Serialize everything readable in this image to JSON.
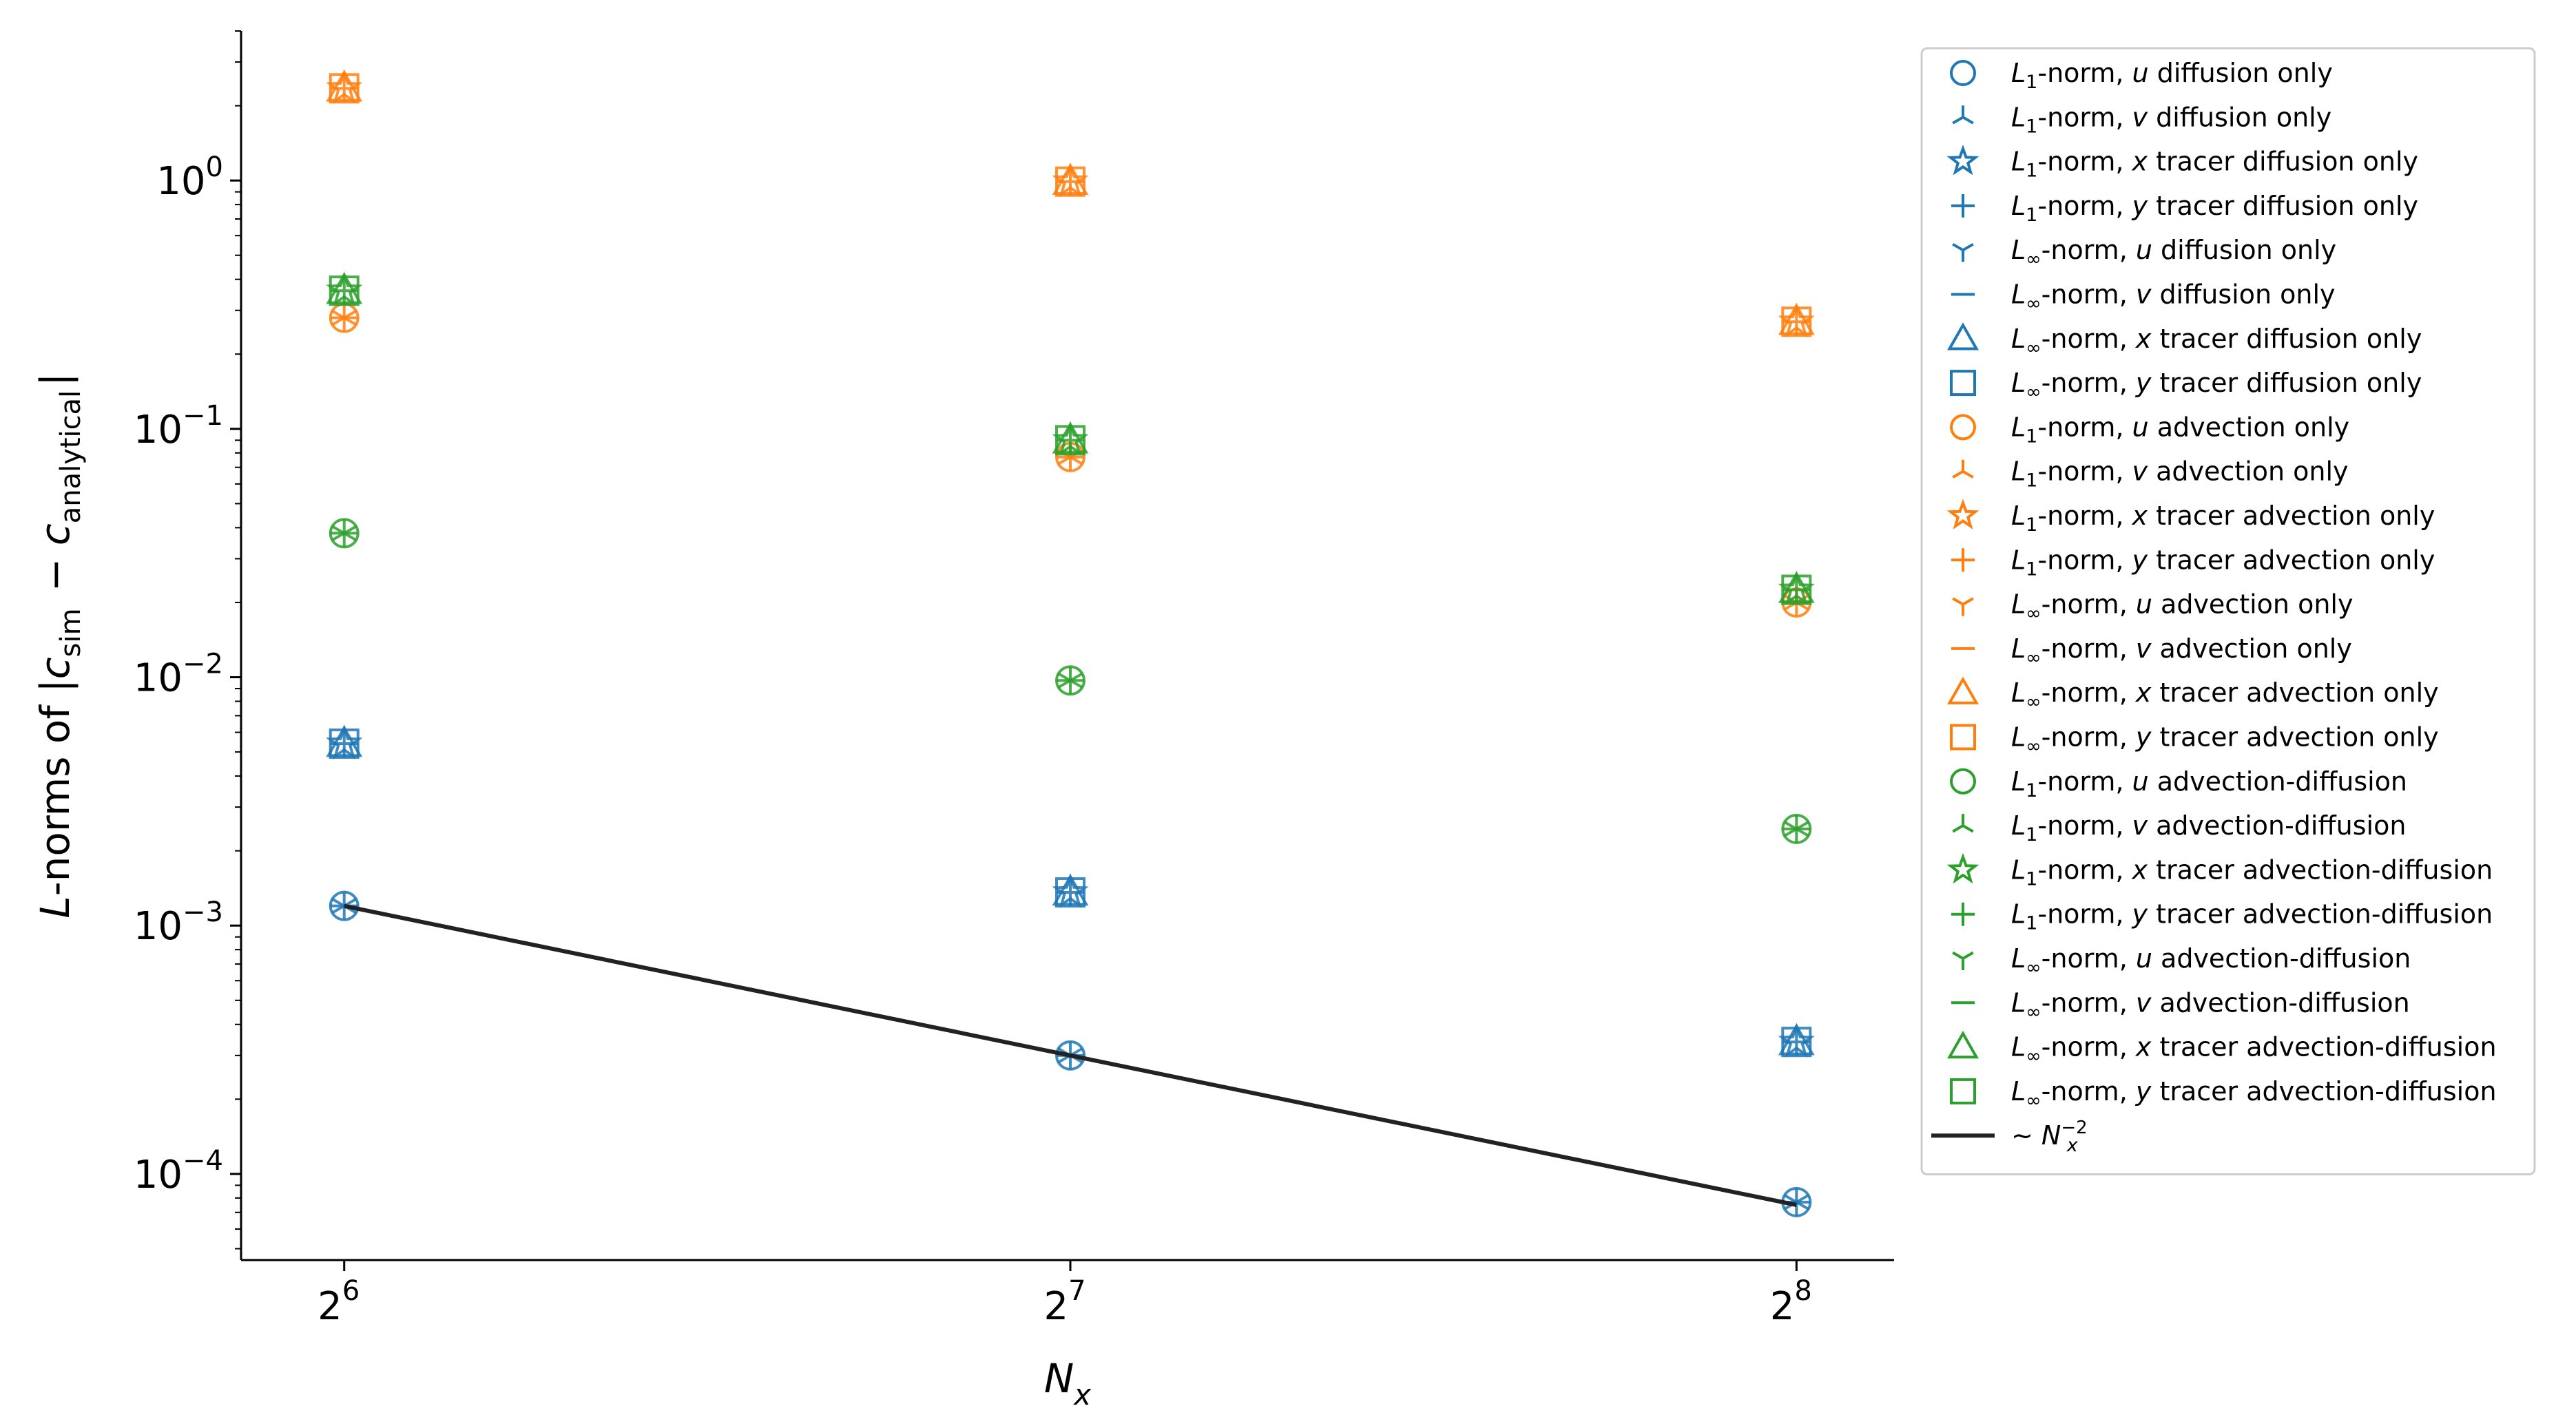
{
  "chart_data": {
    "type": "scatter",
    "x_scale": "log2",
    "y_scale": "log10",
    "xlabel": "N_x",
    "ylabel": "L-norms of |c_sim − c_analytical|",
    "x_ticks": [
      {
        "value": 64,
        "base": "2",
        "exp": "6"
      },
      {
        "value": 128,
        "base": "2",
        "exp": "7"
      },
      {
        "value": 256,
        "base": "2",
        "exp": "8"
      }
    ],
    "y_ticks": [
      {
        "value": 0.0001,
        "base": "10",
        "exp": "−4"
      },
      {
        "value": 0.001,
        "base": "10",
        "exp": "−3"
      },
      {
        "value": 0.01,
        "base": "10",
        "exp": "−2"
      },
      {
        "value": 0.1,
        "base": "10",
        "exp": "−1"
      },
      {
        "value": 1,
        "base": "10",
        "exp": "0"
      }
    ],
    "xlim": [
      58,
      281
    ],
    "ylim": [
      4.5e-05,
      4.0
    ],
    "grid": false,
    "legend_position": "outside-right",
    "colors": {
      "diffusion": "#1f77b4",
      "advection": "#ff7f0e",
      "advection_diffusion": "#2ca02c",
      "reference": "#222222"
    },
    "x": [
      64,
      128,
      256
    ],
    "series": [
      {
        "name": "L1-norm, u diffusion only",
        "norm": "L",
        "sub": "1",
        "var": "u",
        "mid": "",
        "suffix": "diffusion only",
        "marker": "circle",
        "group": "diffusion",
        "values": [
          0.0012,
          0.0003,
          7.7e-05
        ]
      },
      {
        "name": "L1-norm, v diffusion only",
        "norm": "L",
        "sub": "1",
        "var": "v",
        "mid": "",
        "suffix": "diffusion only",
        "marker": "tri_up",
        "group": "diffusion",
        "values": [
          0.0012,
          0.0003,
          7.7e-05
        ]
      },
      {
        "name": "L1-norm, x tracer diffusion only",
        "norm": "L",
        "sub": "1",
        "var": "x",
        "mid": " tracer",
        "suffix": "diffusion only",
        "marker": "star",
        "group": "diffusion",
        "values": [
          0.0054,
          0.00136,
          0.00034
        ]
      },
      {
        "name": "L1-norm, y tracer diffusion only",
        "norm": "L",
        "sub": "1",
        "var": "y",
        "mid": " tracer",
        "suffix": "diffusion only",
        "marker": "plus",
        "group": "diffusion",
        "values": [
          0.0054,
          0.00136,
          0.00034
        ]
      },
      {
        "name": "L∞-norm, u diffusion only",
        "norm": "L",
        "sub": "∞",
        "var": "u",
        "mid": "",
        "suffix": "diffusion only",
        "marker": "tri_down",
        "group": "diffusion",
        "values": [
          0.0012,
          0.0003,
          7.7e-05
        ]
      },
      {
        "name": "L∞-norm, v diffusion only",
        "norm": "L",
        "sub": "∞",
        "var": "v",
        "mid": "",
        "suffix": "diffusion only",
        "marker": "hline",
        "group": "diffusion",
        "values": [
          0.0012,
          0.0003,
          7.7e-05
        ]
      },
      {
        "name": "L∞-norm, x tracer diffusion only",
        "norm": "L",
        "sub": "∞",
        "var": "x",
        "mid": " tracer",
        "suffix": "diffusion only",
        "marker": "triangle",
        "group": "diffusion",
        "values": [
          0.0054,
          0.00136,
          0.00034
        ]
      },
      {
        "name": "L∞-norm, y tracer diffusion only",
        "norm": "L",
        "sub": "∞",
        "var": "y",
        "mid": " tracer",
        "suffix": "diffusion only",
        "marker": "square",
        "group": "diffusion",
        "values": [
          0.0054,
          0.00136,
          0.00034
        ]
      },
      {
        "name": "L1-norm, u advection only",
        "norm": "L",
        "sub": "1",
        "var": "u",
        "mid": "",
        "suffix": "advection only",
        "marker": "circle",
        "group": "advection",
        "values": [
          0.28,
          0.077,
          0.02
        ]
      },
      {
        "name": "L1-norm, v advection only",
        "norm": "L",
        "sub": "1",
        "var": "v",
        "mid": "",
        "suffix": "advection only",
        "marker": "tri_up",
        "group": "advection",
        "values": [
          0.28,
          0.077,
          0.02
        ]
      },
      {
        "name": "L1-norm, x tracer advection only",
        "norm": "L",
        "sub": "1",
        "var": "x",
        "mid": " tracer",
        "suffix": "advection only",
        "marker": "star",
        "group": "advection",
        "values": [
          2.35,
          0.99,
          0.27
        ]
      },
      {
        "name": "L1-norm, y tracer advection only",
        "norm": "L",
        "sub": "1",
        "var": "y",
        "mid": " tracer",
        "suffix": "advection only",
        "marker": "plus",
        "group": "advection",
        "values": [
          2.35,
          0.99,
          0.27
        ]
      },
      {
        "name": "L∞-norm, u advection only",
        "norm": "L",
        "sub": "∞",
        "var": "u",
        "mid": "",
        "suffix": "advection only",
        "marker": "tri_down",
        "group": "advection",
        "values": [
          0.28,
          0.077,
          0.02
        ]
      },
      {
        "name": "L∞-norm, v advection only",
        "norm": "L",
        "sub": "∞",
        "var": "v",
        "mid": "",
        "suffix": "advection only",
        "marker": "hline",
        "group": "advection",
        "values": [
          0.28,
          0.077,
          0.02
        ]
      },
      {
        "name": "L∞-norm, x tracer advection only",
        "norm": "L",
        "sub": "∞",
        "var": "x",
        "mid": " tracer",
        "suffix": "advection only",
        "marker": "triangle",
        "group": "advection",
        "values": [
          2.35,
          0.99,
          0.27
        ]
      },
      {
        "name": "L∞-norm, y tracer advection only",
        "norm": "L",
        "sub": "∞",
        "var": "y",
        "mid": " tracer",
        "suffix": "advection only",
        "marker": "square",
        "group": "advection",
        "values": [
          2.35,
          0.99,
          0.27
        ]
      },
      {
        "name": "L1-norm, u advection-diffusion",
        "norm": "L",
        "sub": "1",
        "var": "u",
        "mid": "",
        "suffix": "advection-diffusion",
        "marker": "circle",
        "group": "advection_diffusion",
        "values": [
          0.038,
          0.0097,
          0.00245
        ]
      },
      {
        "name": "L1-norm, v advection-diffusion",
        "norm": "L",
        "sub": "1",
        "var": "v",
        "mid": "",
        "suffix": "advection-diffusion",
        "marker": "tri_up",
        "group": "advection_diffusion",
        "values": [
          0.038,
          0.0097,
          0.00245
        ]
      },
      {
        "name": "L1-norm, x tracer advection-diffusion",
        "norm": "L",
        "sub": "1",
        "var": "x",
        "mid": " tracer",
        "suffix": "advection-diffusion",
        "marker": "star",
        "group": "advection_diffusion",
        "values": [
          0.36,
          0.09,
          0.0225
        ]
      },
      {
        "name": "L1-norm, y tracer advection-diffusion",
        "norm": "L",
        "sub": "1",
        "var": "y",
        "mid": " tracer",
        "suffix": "advection-diffusion",
        "marker": "plus",
        "group": "advection_diffusion",
        "values": [
          0.36,
          0.09,
          0.0225
        ]
      },
      {
        "name": "L∞-norm, u advection-diffusion",
        "norm": "L",
        "sub": "∞",
        "var": "u",
        "mid": "",
        "suffix": "advection-diffusion",
        "marker": "tri_down",
        "group": "advection_diffusion",
        "values": [
          0.038,
          0.0097,
          0.00245
        ]
      },
      {
        "name": "L∞-norm, v advection-diffusion",
        "norm": "L",
        "sub": "∞",
        "var": "v",
        "mid": "",
        "suffix": "advection-diffusion",
        "marker": "hline",
        "group": "advection_diffusion",
        "values": [
          0.038,
          0.0097,
          0.00245
        ]
      },
      {
        "name": "L∞-norm, x tracer advection-diffusion",
        "norm": "L",
        "sub": "∞",
        "var": "x",
        "mid": " tracer",
        "suffix": "advection-diffusion",
        "marker": "triangle",
        "group": "advection_diffusion",
        "values": [
          0.36,
          0.09,
          0.0225
        ]
      },
      {
        "name": "L∞-norm, y tracer advection-diffusion",
        "norm": "L",
        "sub": "∞",
        "var": "y",
        "mid": " tracer",
        "suffix": "advection-diffusion",
        "marker": "square",
        "group": "advection_diffusion",
        "values": [
          0.36,
          0.09,
          0.0225
        ]
      }
    ],
    "reference_line": {
      "name": "~ N_x^−2",
      "label_prefix": "~ ",
      "label_var": "N",
      "label_sub": "x",
      "label_sup": "−2",
      "x": [
        64,
        256
      ],
      "values": [
        0.0012,
        7.5e-05
      ]
    }
  }
}
